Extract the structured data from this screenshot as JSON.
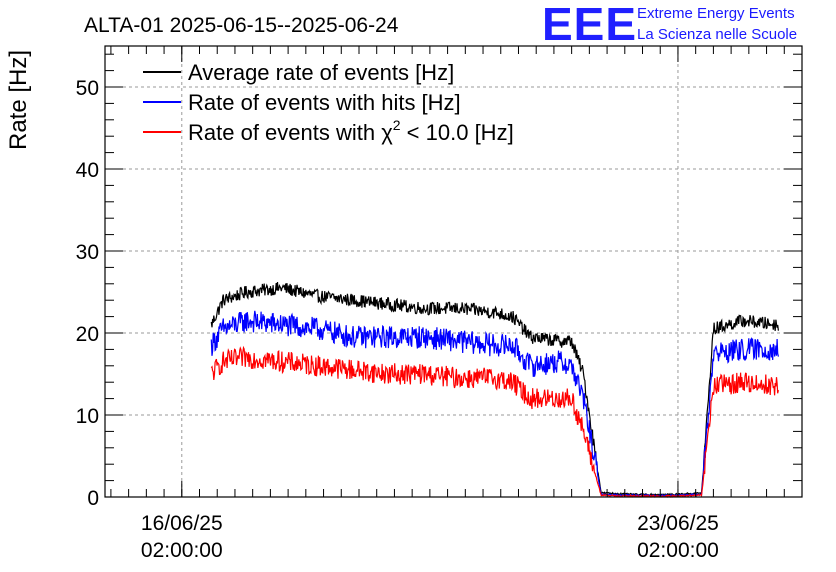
{
  "title": "ALTA-01 2025-06-15--2025-06-24",
  "logo": {
    "mark": "EEE",
    "line1": "Extreme Energy Events",
    "line2": "La Scienza nelle Scuole",
    "color": "#1a1aff"
  },
  "chart_data": {
    "type": "line",
    "title": "ALTA-01 2025-06-15--2025-06-24",
    "ylabel": "Rate [Hz]",
    "xlabel": "",
    "ylim": [
      0,
      55
    ],
    "yticks": [
      0,
      10,
      20,
      30,
      40,
      50
    ],
    "xlim": [
      "2025-06-15T00:00",
      "2025-06-24T20:00"
    ],
    "xticks": [
      {
        "date": "2025-06-16T02:00",
        "label_top": "16/06/25",
        "label_bottom": "02:00:00"
      },
      {
        "date": "2025-06-23T02:00",
        "label_top": "23/06/25",
        "label_bottom": "02:00:00"
      }
    ],
    "grid": true,
    "legend_position": "top-left",
    "series": [
      {
        "name": "Average rate of events [Hz]",
        "color": "#000000",
        "x": [
          "2025-06-16T12:00",
          "2025-06-16T16:00",
          "2025-06-17T00:00",
          "2025-06-17T12:00",
          "2025-06-18T00:00",
          "2025-06-18T12:00",
          "2025-06-19T00:00",
          "2025-06-19T12:00",
          "2025-06-20T00:00",
          "2025-06-20T12:00",
          "2025-06-20T18:00",
          "2025-06-21T00:00",
          "2025-06-21T10:00",
          "2025-06-21T14:00",
          "2025-06-21T18:00",
          "2025-06-22T00:00",
          "2025-06-22T12:00",
          "2025-06-23T00:00",
          "2025-06-23T10:00",
          "2025-06-23T14:00",
          "2025-06-24T00:00",
          "2025-06-24T12:00"
        ],
        "y": [
          21,
          24,
          25,
          25.5,
          24.5,
          24,
          23.5,
          23,
          23,
          22.5,
          22,
          19.5,
          19,
          19,
          15,
          0.5,
          0.3,
          0.3,
          0.5,
          20.5,
          21.5,
          21
        ]
      },
      {
        "name": "Rate of events with hits [Hz]",
        "color": "#0000ff",
        "x": [
          "2025-06-16T12:00",
          "2025-06-16T16:00",
          "2025-06-17T00:00",
          "2025-06-17T12:00",
          "2025-06-18T00:00",
          "2025-06-18T12:00",
          "2025-06-19T00:00",
          "2025-06-19T12:00",
          "2025-06-20T00:00",
          "2025-06-20T12:00",
          "2025-06-20T18:00",
          "2025-06-21T00:00",
          "2025-06-21T10:00",
          "2025-06-21T14:00",
          "2025-06-21T18:00",
          "2025-06-22T00:00",
          "2025-06-22T12:00",
          "2025-06-23T00:00",
          "2025-06-23T10:00",
          "2025-06-23T14:00",
          "2025-06-24T00:00",
          "2025-06-24T12:00"
        ],
        "y": [
          18.5,
          20.5,
          21.5,
          21,
          20.5,
          19.5,
          19.5,
          19.5,
          19,
          18.5,
          18.5,
          16,
          16.5,
          16,
          12,
          0.3,
          0.2,
          0.2,
          0.3,
          17.5,
          18,
          18
        ]
      },
      {
        "name": "Rate of events with χ² < 10.0 [Hz]",
        "color": "#ff0000",
        "x": [
          "2025-06-16T12:00",
          "2025-06-16T16:00",
          "2025-06-17T00:00",
          "2025-06-17T12:00",
          "2025-06-18T00:00",
          "2025-06-18T12:00",
          "2025-06-19T00:00",
          "2025-06-19T12:00",
          "2025-06-20T00:00",
          "2025-06-20T12:00",
          "2025-06-20T18:00",
          "2025-06-21T00:00",
          "2025-06-21T10:00",
          "2025-06-21T14:00",
          "2025-06-21T18:00",
          "2025-06-22T00:00",
          "2025-06-22T12:00",
          "2025-06-23T00:00",
          "2025-06-23T10:00",
          "2025-06-23T14:00",
          "2025-06-24T00:00",
          "2025-06-24T12:00"
        ],
        "y": [
          15,
          16.5,
          17,
          16.5,
          16,
          15.5,
          15,
          15,
          14.5,
          14.5,
          14,
          12,
          12,
          12,
          8,
          0.2,
          0.1,
          0.1,
          0.2,
          13.5,
          14,
          13.5
        ]
      }
    ],
    "legend": [
      {
        "series": 0,
        "text": "Average rate of events [Hz]"
      },
      {
        "series": 1,
        "text": "Rate of events with hits [Hz]"
      },
      {
        "series": 2,
        "text_before": "Rate of events with χ",
        "sup": "2",
        "text_after": " < 10.0 [Hz]"
      }
    ]
  }
}
